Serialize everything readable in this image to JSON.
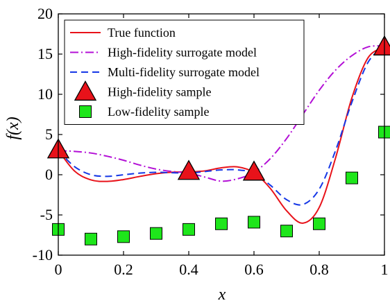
{
  "chart_data": {
    "type": "line",
    "title": "",
    "xlabel": "x",
    "ylabel": "f(x)",
    "xlim": [
      0,
      1
    ],
    "ylim": [
      -10,
      20
    ],
    "xticks": [
      0,
      0.2,
      0.4,
      0.6,
      0.8,
      1
    ],
    "xtick_labels": [
      "0",
      "0.2",
      "0.4",
      "0.6",
      "0.8",
      "1"
    ],
    "yticks": [
      -10,
      -5,
      0,
      5,
      10,
      15,
      20
    ],
    "ytick_labels": [
      "-10",
      "-5",
      "0",
      "5",
      "10",
      "15",
      "20"
    ],
    "grid": false,
    "legend_position": "top-left",
    "series": [
      {
        "name": "True function",
        "kind": "line",
        "color": "#e8121a",
        "line_style": "solid",
        "x": [
          0,
          0.05,
          0.1,
          0.15,
          0.2,
          0.25,
          0.3,
          0.35,
          0.4,
          0.45,
          0.5,
          0.55,
          0.6,
          0.65,
          0.7,
          0.75,
          0.8,
          0.85,
          0.9,
          0.95,
          1
        ],
        "y": [
          3.03,
          0.45,
          -0.64,
          -0.83,
          -0.6,
          -0.21,
          0.13,
          0.31,
          0.36,
          0.48,
          0.86,
          0.97,
          0.27,
          -1.7,
          -4.48,
          -6.02,
          -4.07,
          2.07,
          9.54,
          14.56,
          15.83
        ]
      },
      {
        "name": "High-fidelity surrogate model",
        "kind": "line",
        "color": "#b30fd6",
        "line_style": "dashdot",
        "x": [
          0,
          0.05,
          0.1,
          0.15,
          0.2,
          0.25,
          0.3,
          0.35,
          0.4,
          0.45,
          0.5,
          0.55,
          0.6,
          0.65,
          0.7,
          0.75,
          0.8,
          0.85,
          0.9,
          0.95,
          1
        ],
        "y": [
          3.0,
          2.9,
          2.7,
          2.3,
          1.8,
          1.2,
          0.7,
          0.4,
          0.2,
          -0.3,
          -0.8,
          -0.5,
          0.3,
          2.0,
          4.5,
          7.5,
          10.5,
          13.0,
          14.8,
          15.9,
          16.0
        ]
      },
      {
        "name": "Multi-fidelity surrogate model",
        "kind": "line",
        "color": "#1537e6",
        "line_style": "dashed",
        "x": [
          0,
          0.05,
          0.1,
          0.15,
          0.2,
          0.25,
          0.3,
          0.35,
          0.4,
          0.45,
          0.5,
          0.55,
          0.6,
          0.65,
          0.7,
          0.75,
          0.8,
          0.85,
          0.9,
          0.95,
          1
        ],
        "y": [
          3.0,
          1.0,
          0.0,
          -0.2,
          0.0,
          0.2,
          0.3,
          0.25,
          0.2,
          0.4,
          0.6,
          0.6,
          0.2,
          -1.3,
          -3.1,
          -3.7,
          -1.8,
          3.0,
          9.0,
          14.0,
          16.0
        ]
      },
      {
        "name": "High-fidelity sample",
        "kind": "marker",
        "marker": "triangle",
        "color": "#e8121a",
        "x": [
          0,
          0.4,
          0.6,
          1
        ],
        "y": [
          3.03,
          0.36,
          0.27,
          15.83
        ]
      },
      {
        "name": "Low-fidelity sample",
        "kind": "marker",
        "marker": "square",
        "color": "#1ee61b",
        "x": [
          0,
          0.1,
          0.2,
          0.3,
          0.4,
          0.5,
          0.6,
          0.7,
          0.8,
          0.9,
          1
        ],
        "y": [
          -6.8,
          -8.0,
          -7.7,
          -7.3,
          -6.8,
          -6.1,
          -5.9,
          -7.0,
          -6.1,
          -0.4,
          5.3
        ]
      }
    ]
  }
}
